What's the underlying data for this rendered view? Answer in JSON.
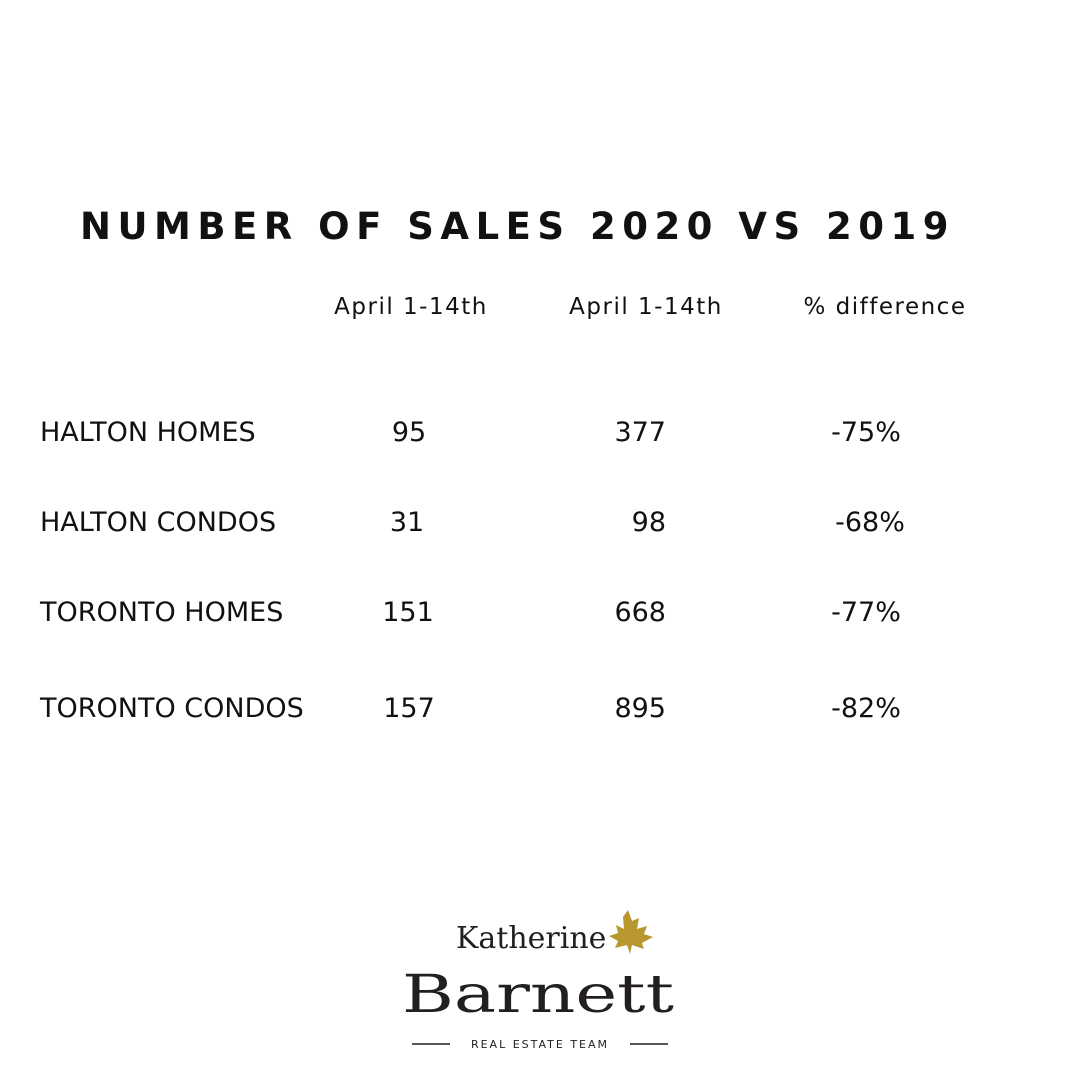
{
  "chart_data": {
    "type": "table",
    "title": "NUMBER OF SALES 2020 VS 2019",
    "columns": [
      "April 1-14th",
      "April 1-14th",
      "% difference"
    ],
    "rows": [
      {
        "label": "HALTON HOMES",
        "values": [
          "95",
          "377",
          "-75%"
        ]
      },
      {
        "label": "HALTON CONDOS",
        "values": [
          "31",
          "98",
          "-68%"
        ]
      },
      {
        "label": "TORONTO HOMES",
        "values": [
          "151",
          "668",
          "-77%"
        ]
      },
      {
        "label": "TORONTO CONDOS",
        "values": [
          "157",
          "895",
          "-82%"
        ]
      }
    ]
  },
  "logo": {
    "first": "Katherine",
    "last": "Barnett",
    "tagline": "REAL ESTATE TEAM",
    "leaf_color": "#b8972e"
  }
}
